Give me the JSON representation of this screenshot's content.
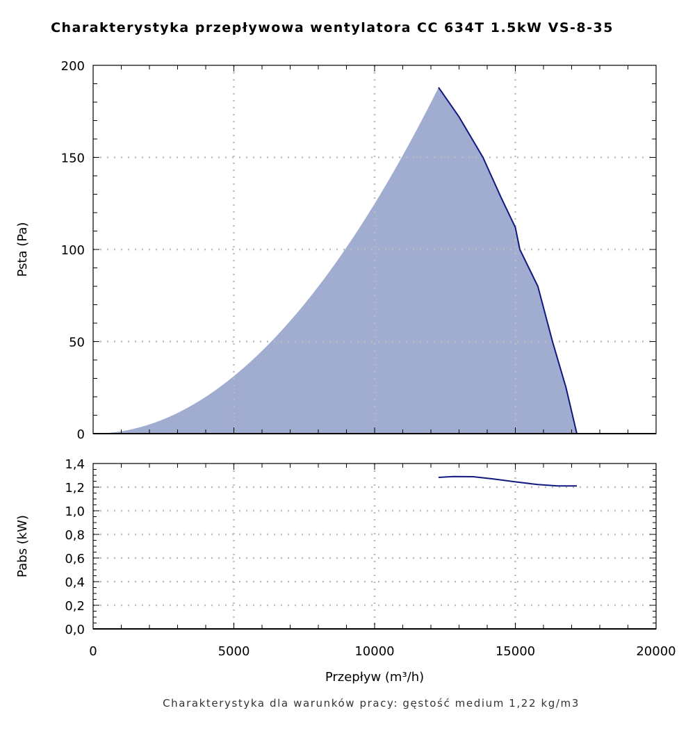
{
  "chart_data": [
    {
      "type": "area",
      "title": "Charakterystyka przepływowa wentylatora CC 634T 1.5kW VS-8-35",
      "ylabel": "Psta (Pa)",
      "xlim": [
        0,
        20000
      ],
      "ylim": [
        0,
        200
      ],
      "yticks": [
        0,
        50,
        100,
        150,
        200
      ],
      "grid": true,
      "fill_color": "#a0acd0",
      "line_color": "#101880",
      "system_curve": {
        "peak_x": 12272,
        "peak_y": 188
      },
      "fan_curve": {
        "x": [
          12272,
          13000,
          13850,
          14500,
          15000,
          15160,
          15800,
          16320,
          16800,
          17185
        ],
        "y": [
          188,
          172,
          150,
          128,
          112,
          100,
          80,
          50,
          25,
          0
        ]
      }
    },
    {
      "type": "line",
      "ylabel": "Pabs (kW)",
      "xlabel": "Przepływ (m³/h)",
      "xlim": [
        0,
        20000
      ],
      "ylim": [
        0,
        1.4
      ],
      "yticks": [
        "0,0",
        "0,2",
        "0,4",
        "0,6",
        "0,8",
        "1,0",
        "1,2",
        "1,4"
      ],
      "xticks": [
        "0",
        "5000",
        "10000",
        "15000",
        "20000"
      ],
      "grid": true,
      "line_color": "#101880",
      "series": {
        "x": [
          12272,
          12800,
          13500,
          14200,
          15000,
          15800,
          16500,
          17185
        ],
        "y": [
          1.282,
          1.29,
          1.288,
          1.27,
          1.245,
          1.222,
          1.21,
          1.21
        ]
      }
    }
  ],
  "footnote": "Charakterystyka dla warunków pracy: gęstość medium 1,22 kg/m3"
}
